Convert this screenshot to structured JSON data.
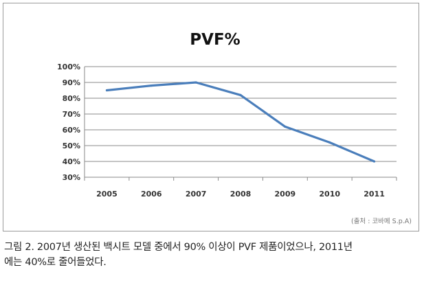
{
  "chart_data": {
    "type": "line",
    "title": "PVF%",
    "categories": [
      "2005",
      "2006",
      "2007",
      "2008",
      "2009",
      "2010",
      "2011"
    ],
    "series": [
      {
        "values": [
          85,
          88,
          90,
          82,
          62,
          52,
          40
        ]
      }
    ],
    "ylim": [
      30,
      100
    ],
    "yticks": [
      "30%",
      "40%",
      "50%",
      "60%",
      "70%",
      "80%",
      "90%",
      "100%"
    ],
    "grid": true,
    "line_color": "#4a7ebb",
    "source_note": "(출처 : 코바메 S.p.A)"
  },
  "caption": {
    "line1": "그림 2. 2007년 생산된 백시트 모델 중에서 90% 이상이 PVF 제품이었으나, 2011년",
    "line2": "에는 40%로 줄어들었다."
  }
}
